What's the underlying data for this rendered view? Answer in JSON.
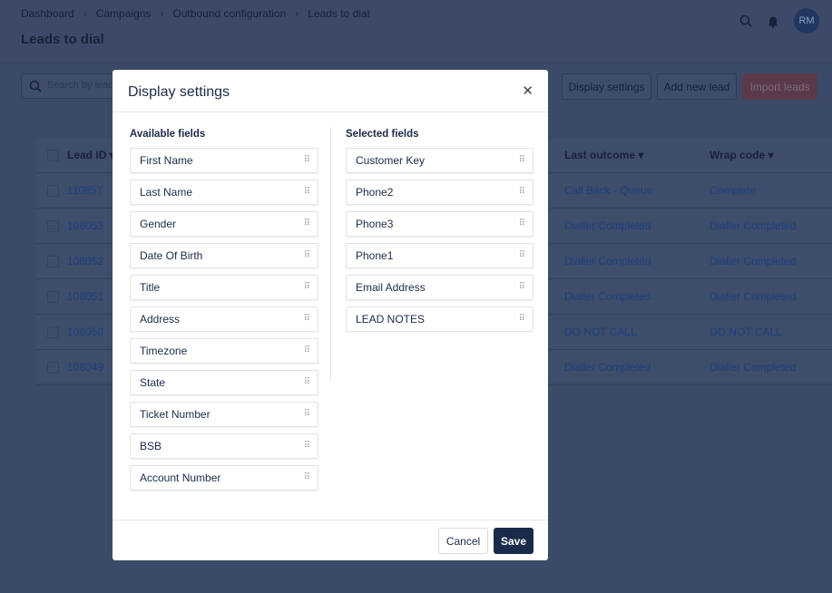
{
  "breadcrumbs": [
    "Dashboard",
    "Campaigns",
    "Outbound configuration",
    "Leads to dial"
  ],
  "page_title": "Leads to dial",
  "user_initials": "RM",
  "search_placeholder": "Search by lead",
  "toolbar": {
    "display_settings": "Display settings",
    "add_new_lead": "Add new lead",
    "import_leads": "Import leads"
  },
  "colors": {
    "accent": "#1a2a4a",
    "import": "#9b3a3a",
    "link": "#1f5bc4"
  },
  "table": {
    "headers": [
      "Lead ID",
      "Last outcome",
      "Wrap code"
    ],
    "rows": [
      [
        "110857",
        "Call Back - Queue",
        "Complete"
      ],
      [
        "108053",
        "Dialler Completed",
        "Dialler Completed"
      ],
      [
        "108052",
        "Dialler Completed",
        "Dialler Completed"
      ],
      [
        "108051",
        "Dialler Completed",
        "Dialler Completed"
      ],
      [
        "108050",
        "DO NOT CALL",
        "DO NOT CALL"
      ],
      [
        "108049",
        "Dialler Completed",
        "Dialler Completed"
      ]
    ]
  },
  "modal": {
    "title": "Display settings",
    "available_title": "Available fields",
    "selected_title": "Selected fields",
    "available": [
      "First Name",
      "Last Name",
      "Gender",
      "Date Of Birth",
      "Title",
      "Address",
      "Timezone",
      "State",
      "Ticket Number",
      "BSB",
      "Account Number"
    ],
    "selected": [
      "Customer Key",
      "Phone2",
      "Phone3",
      "Phone1",
      "Email Address",
      "LEAD NOTES"
    ],
    "cancel": "Cancel",
    "save": "Save"
  }
}
